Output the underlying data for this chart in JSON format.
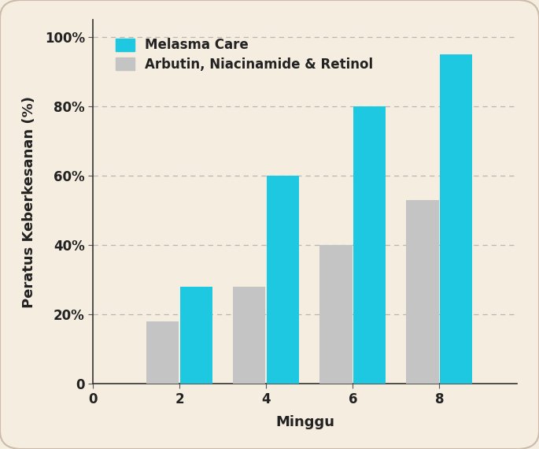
{
  "title": "",
  "xlabel": "Minggu",
  "ylabel": "Peratus Keberkesanan (%)",
  "background_color": "#f5ede0",
  "weeks": [
    2,
    4,
    6,
    8
  ],
  "melasma_care": [
    28,
    60,
    80,
    95
  ],
  "arbutin": [
    18,
    28,
    40,
    53
  ],
  "melasma_color": "#1ec8e0",
  "arbutin_color": "#c4c4c4",
  "ylim": [
    0,
    105
  ],
  "xlim": [
    0.2,
    9.8
  ],
  "yticks": [
    0,
    20,
    40,
    60,
    80,
    100
  ],
  "ytick_labels": [
    "0",
    "20%",
    "40%",
    "60%",
    "80%",
    "100%"
  ],
  "xticks": [
    0,
    2,
    4,
    6,
    8
  ],
  "bar_width": 0.75,
  "legend_melasma": "Melasma Care",
  "legend_arbutin": "Arbutin, Niacinamide & Retinol",
  "legend_fontsize": 12,
  "axis_label_fontsize": 13,
  "tick_fontsize": 12,
  "figsize": [
    6.85,
    5.7
  ],
  "dpi": 100
}
